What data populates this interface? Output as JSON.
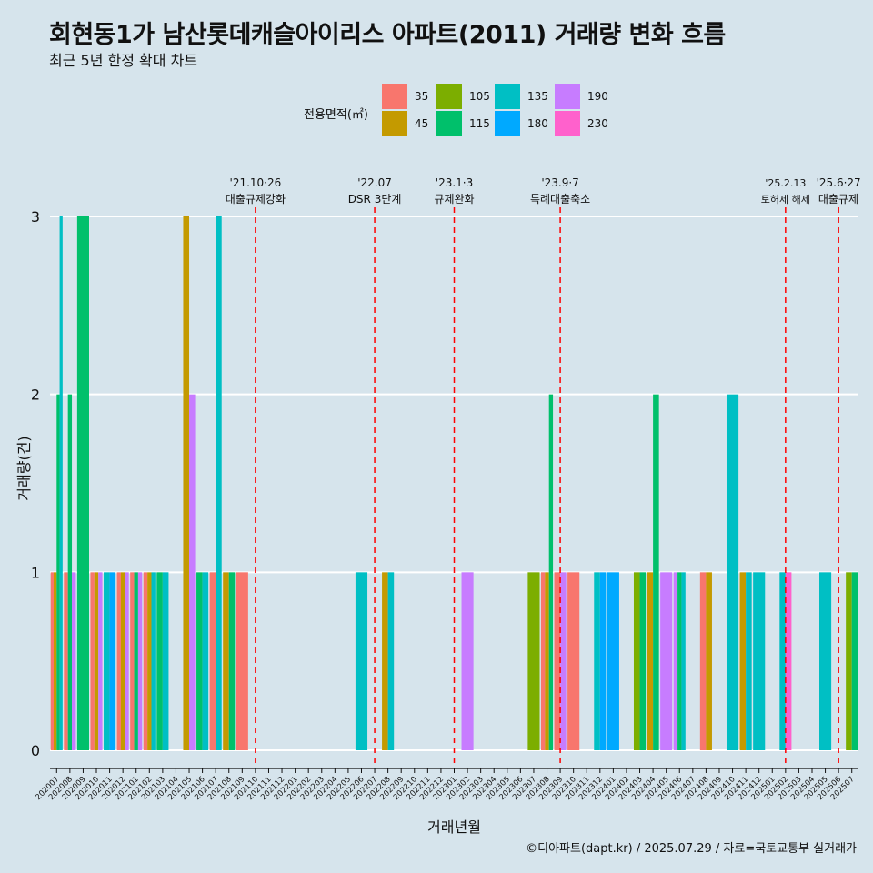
{
  "title": "회현동1가 남산롯데캐슬아이리스 아파트(2011) 거래량 변화 흐름",
  "subtitle": "최근 5년 한정 확대 차트",
  "caption": "©디아파트(dapt.kr) / 2025.07.29 / 자료=국토교통부 실거래가",
  "legend": {
    "title": "전용면적(㎡)",
    "items": [
      {
        "label": "35",
        "color": "#F8766D"
      },
      {
        "label": "45",
        "color": "#C49A00"
      },
      {
        "label": "105",
        "color": "#7CAE00"
      },
      {
        "label": "115",
        "color": "#00C06B"
      },
      {
        "label": "135",
        "color": "#00BFC4"
      },
      {
        "label": "180",
        "color": "#00A9FF"
      },
      {
        "label": "190",
        "color": "#C77CFF"
      },
      {
        "label": "230",
        "color": "#FF61CC"
      }
    ]
  },
  "chart_data": {
    "type": "bar",
    "xlabel": "거래년월",
    "ylabel": "거래량(건)",
    "ylim": [
      0,
      3
    ],
    "yticks": [
      0,
      1,
      2,
      3
    ],
    "categories": [
      "202007",
      "202008",
      "202009",
      "202010",
      "202011",
      "202012",
      "202101",
      "202102",
      "202103",
      "202104",
      "202105",
      "202106",
      "202107",
      "202108",
      "202109",
      "202110",
      "202111",
      "202112",
      "202201",
      "202202",
      "202203",
      "202204",
      "202205",
      "202206",
      "202207",
      "202208",
      "202209",
      "202210",
      "202211",
      "202212",
      "202301",
      "202302",
      "202303",
      "202304",
      "202305",
      "202306",
      "202307",
      "202308",
      "202309",
      "202310",
      "202311",
      "202312",
      "202401",
      "202402",
      "202403",
      "202404",
      "202405",
      "202406",
      "202407",
      "202408",
      "202409",
      "202410",
      "202411",
      "202412",
      "202501",
      "202502",
      "202503",
      "202504",
      "202505",
      "202506",
      "202507"
    ],
    "bars": [
      {
        "m": "202007",
        "s": [
          [
            "35",
            1
          ],
          [
            "45",
            1
          ],
          [
            "115",
            2
          ],
          [
            "135",
            3
          ]
        ]
      },
      {
        "m": "202008",
        "s": [
          [
            "35",
            1
          ],
          [
            "115",
            2
          ],
          [
            "190",
            1
          ]
        ]
      },
      {
        "m": "202009",
        "s": [
          [
            "115",
            3
          ]
        ]
      },
      {
        "m": "202010",
        "s": [
          [
            "35",
            1
          ],
          [
            "45",
            1
          ],
          [
            "190",
            1
          ]
        ]
      },
      {
        "m": "202011",
        "s": [
          [
            "135",
            1
          ],
          [
            "180",
            1
          ]
        ]
      },
      {
        "m": "202012",
        "s": [
          [
            "35",
            1
          ],
          [
            "45",
            1
          ],
          [
            "190",
            1
          ]
        ]
      },
      {
        "m": "202101",
        "s": [
          [
            "35",
            1
          ],
          [
            "115",
            1
          ],
          [
            "190",
            1
          ]
        ]
      },
      {
        "m": "202102",
        "s": [
          [
            "35",
            1
          ],
          [
            "45",
            1
          ],
          [
            "135",
            1
          ]
        ]
      },
      {
        "m": "202103",
        "s": [
          [
            "115",
            1
          ],
          [
            "135",
            1
          ]
        ]
      },
      {
        "m": "202105",
        "s": [
          [
            "45",
            3
          ],
          [
            "190",
            2
          ]
        ]
      },
      {
        "m": "202106",
        "s": [
          [
            "115",
            1
          ],
          [
            "135",
            1
          ]
        ]
      },
      {
        "m": "202107",
        "s": [
          [
            "35",
            1
          ],
          [
            "135",
            3
          ]
        ]
      },
      {
        "m": "202108",
        "s": [
          [
            "45",
            1
          ],
          [
            "115",
            1
          ]
        ]
      },
      {
        "m": "202109",
        "s": [
          [
            "35",
            1
          ]
        ]
      },
      {
        "m": "202206",
        "s": [
          [
            "135",
            1
          ]
        ]
      },
      {
        "m": "202208",
        "s": [
          [
            "45",
            1
          ],
          [
            "135",
            1
          ]
        ]
      },
      {
        "m": "202302",
        "s": [
          [
            "190",
            1
          ]
        ]
      },
      {
        "m": "202307",
        "s": [
          [
            "105",
            1
          ]
        ]
      },
      {
        "m": "202308",
        "s": [
          [
            "35",
            1
          ],
          [
            "45",
            1
          ],
          [
            "115",
            2
          ]
        ]
      },
      {
        "m": "202309",
        "s": [
          [
            "35",
            1
          ],
          [
            "190",
            1
          ]
        ]
      },
      {
        "m": "202310",
        "s": [
          [
            "35",
            1
          ]
        ]
      },
      {
        "m": "202312",
        "s": [
          [
            "135",
            1
          ],
          [
            "180",
            1
          ]
        ]
      },
      {
        "m": "202401",
        "s": [
          [
            "180",
            1
          ]
        ]
      },
      {
        "m": "202403",
        "s": [
          [
            "105",
            1
          ],
          [
            "115",
            1
          ]
        ]
      },
      {
        "m": "202404",
        "s": [
          [
            "45",
            1
          ],
          [
            "115",
            2
          ]
        ]
      },
      {
        "m": "202405",
        "s": [
          [
            "190",
            1
          ]
        ]
      },
      {
        "m": "202406",
        "s": [
          [
            "190",
            1
          ],
          [
            "115",
            1
          ],
          [
            "135",
            1
          ]
        ]
      },
      {
        "m": "202408",
        "s": [
          [
            "35",
            1
          ],
          [
            "45",
            1
          ]
        ]
      },
      {
        "m": "202410",
        "s": [
          [
            "135",
            2
          ]
        ]
      },
      {
        "m": "202411",
        "s": [
          [
            "45",
            1
          ],
          [
            "135",
            1
          ]
        ]
      },
      {
        "m": "202412",
        "s": [
          [
            "135",
            1
          ]
        ]
      },
      {
        "m": "202502",
        "s": [
          [
            "135",
            1
          ],
          [
            "230",
            1
          ]
        ]
      },
      {
        "m": "202505",
        "s": [
          [
            "135",
            1
          ]
        ]
      },
      {
        "m": "202507",
        "s": [
          [
            "105",
            1
          ],
          [
            "115",
            1
          ]
        ]
      }
    ],
    "annotations": [
      {
        "m": "202110",
        "date": "'21.10·26",
        "label": "대출규제강화"
      },
      {
        "m": "202207",
        "date": "'22.07",
        "label": "DSR 3단계"
      },
      {
        "m": "202301",
        "date": "'23.1·3",
        "label": "규제완화"
      },
      {
        "m": "202309",
        "date": "'23.9·7",
        "label": "특례대출축소"
      },
      {
        "m": "202502",
        "date": "'25.2.13",
        "label": "토허제 해제"
      },
      {
        "m": "202506",
        "date": "'25.6·27",
        "label": "대출규제"
      }
    ]
  }
}
